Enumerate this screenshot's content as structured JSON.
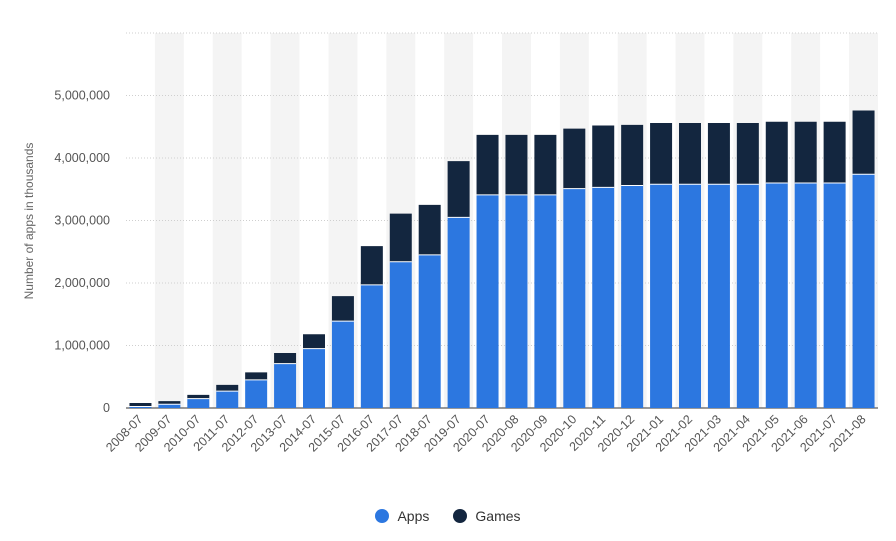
{
  "chart_data": {
    "type": "bar",
    "stacked": true,
    "categories": [
      "2008-07",
      "2009-07",
      "2010-07",
      "2011-07",
      "2012-07",
      "2013-07",
      "2014-07",
      "2015-07",
      "2016-07",
      "2017-07",
      "2018-07",
      "2019-07",
      "2020-07",
      "2020-08",
      "2020-09",
      "2020-10",
      "2020-11",
      "2020-12",
      "2021-01",
      "2021-02",
      "2021-03",
      "2021-04",
      "2021-05",
      "2021-06",
      "2021-07",
      "2021-08"
    ],
    "series": [
      {
        "name": "Apps",
        "color": "#2c77e0",
        "values": [
          25000,
          60000,
          150000,
          270000,
          450000,
          710000,
          950000,
          1390000,
          1970000,
          2340000,
          2450000,
          3050000,
          3410000,
          3410000,
          3410000,
          3510000,
          3530000,
          3560000,
          3580000,
          3580000,
          3580000,
          3580000,
          3600000,
          3600000,
          3600000,
          3740000
        ]
      },
      {
        "name": "Games",
        "color": "#13263f",
        "values": [
          55000,
          50000,
          60000,
          100000,
          120000,
          170000,
          230000,
          400000,
          620000,
          770000,
          800000,
          900000,
          960000,
          960000,
          960000,
          960000,
          990000,
          970000,
          980000,
          980000,
          980000,
          980000,
          980000,
          980000,
          980000,
          1020000
        ]
      }
    ],
    "xlabel": "",
    "ylabel": "Number of apps in thousands",
    "ylim": [
      0,
      6000000
    ],
    "yticks": [
      0,
      1000000,
      2000000,
      3000000,
      4000000,
      5000000
    ],
    "ytick_labels": [
      "0",
      "1,000,000",
      "2,000,000",
      "3,000,000",
      "4,000,000",
      "5,000,000"
    ],
    "grid": true,
    "legend_position": "bottom"
  },
  "legend": {
    "apps_label": "Apps",
    "games_label": "Games"
  }
}
